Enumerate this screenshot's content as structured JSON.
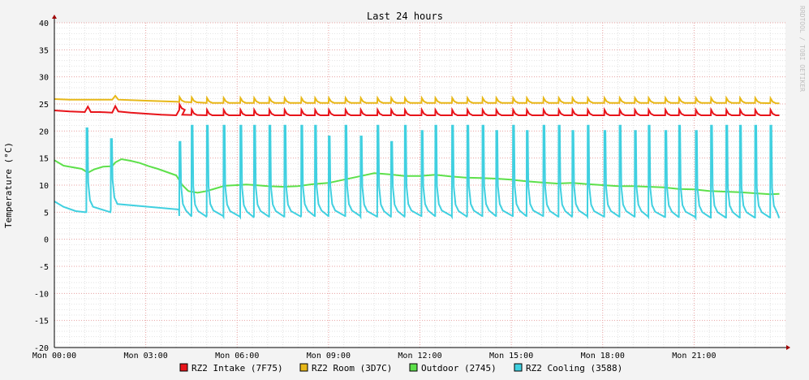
{
  "chart_data": {
    "type": "line",
    "title": "Last 24 hours",
    "ylabel": "Temperature (°C)",
    "watermark": "RRDTOOL / TOBI OETIKER",
    "ylim": [
      -20,
      40
    ],
    "y_ticks": [
      -20,
      -15,
      -10,
      -5,
      0,
      5,
      10,
      15,
      20,
      25,
      30,
      35,
      40
    ],
    "xlim": [
      0,
      24
    ],
    "x_ticks": [
      {
        "hour": 0,
        "label": "Mon 00:00"
      },
      {
        "hour": 3,
        "label": "Mon 03:00"
      },
      {
        "hour": 6,
        "label": "Mon 06:00"
      },
      {
        "hour": 9,
        "label": "Mon 09:00"
      },
      {
        "hour": 12,
        "label": "Mon 12:00"
      },
      {
        "hour": 15,
        "label": "Mon 15:00"
      },
      {
        "hour": 18,
        "label": "Mon 18:00"
      },
      {
        "hour": 21,
        "label": "Mon 21:00"
      }
    ],
    "grid": true,
    "legend_placement": "bottom",
    "series": [
      {
        "name": "RZ2 Intake (7F75)",
        "color": "#e8141a",
        "points": [
          [
            0,
            23.8
          ],
          [
            0.5,
            23.6
          ],
          [
            1,
            23.5
          ],
          [
            1.1,
            24.5
          ],
          [
            1.2,
            23.5
          ],
          [
            1.5,
            23.5
          ],
          [
            1.9,
            23.4
          ],
          [
            2.0,
            24.6
          ],
          [
            2.1,
            23.6
          ],
          [
            2.5,
            23.4
          ],
          [
            3,
            23.2
          ],
          [
            3.5,
            23.0
          ],
          [
            4,
            22.9
          ],
          [
            4.1,
            23.9
          ],
          [
            4.2,
            23.0
          ],
          [
            5,
            22.9
          ],
          [
            5.5,
            22.9
          ],
          [
            6,
            22.9
          ],
          [
            7,
            22.9
          ],
          [
            8,
            22.9
          ],
          [
            9,
            22.9
          ],
          [
            10,
            22.9
          ],
          [
            11,
            22.9
          ],
          [
            12,
            22.9
          ],
          [
            13,
            22.9
          ],
          [
            14,
            22.9
          ],
          [
            15,
            22.9
          ],
          [
            16,
            22.9
          ],
          [
            17,
            22.9
          ],
          [
            18,
            22.9
          ],
          [
            19,
            22.9
          ],
          [
            20,
            22.9
          ],
          [
            21,
            22.9
          ],
          [
            22,
            22.9
          ],
          [
            23,
            22.9
          ],
          [
            23.3,
            22.9
          ],
          [
            23.5,
            22.9
          ],
          [
            23.8,
            22.9
          ]
        ]
      },
      {
        "name": "RZ2 Room (3D7C)",
        "color": "#e8b818",
        "points": [
          [
            0,
            25.9
          ],
          [
            0.5,
            25.8
          ],
          [
            1,
            25.8
          ],
          [
            1.9,
            25.8
          ],
          [
            2.0,
            26.5
          ],
          [
            2.1,
            25.8
          ],
          [
            3,
            25.6
          ],
          [
            4,
            25.4
          ],
          [
            5,
            25.2
          ],
          [
            6,
            25.2
          ],
          [
            7,
            25.2
          ],
          [
            8,
            25.2
          ],
          [
            9,
            25.2
          ],
          [
            10,
            25.2
          ],
          [
            11,
            25.2
          ],
          [
            12,
            25.2
          ],
          [
            13,
            25.2
          ],
          [
            14,
            25.2
          ],
          [
            15,
            25.2
          ],
          [
            16,
            25.2
          ],
          [
            17,
            25.2
          ],
          [
            18,
            25.2
          ],
          [
            19,
            25.2
          ],
          [
            20,
            25.2
          ],
          [
            21,
            25.2
          ],
          [
            22,
            25.2
          ],
          [
            23,
            25.2
          ],
          [
            23.8,
            25.1
          ]
        ]
      },
      {
        "name": "Outdoor (2745)",
        "color": "#5de04a",
        "points": [
          [
            0,
            14.6
          ],
          [
            0.3,
            13.6
          ],
          [
            0.6,
            13.3
          ],
          [
            0.9,
            13.0
          ],
          [
            1.1,
            12.3
          ],
          [
            1.3,
            12.9
          ],
          [
            1.6,
            13.4
          ],
          [
            1.9,
            13.5
          ],
          [
            2.0,
            14.2
          ],
          [
            2.2,
            14.8
          ],
          [
            2.5,
            14.5
          ],
          [
            2.8,
            14.1
          ],
          [
            3.1,
            13.5
          ],
          [
            3.4,
            13.0
          ],
          [
            3.7,
            12.4
          ],
          [
            4.0,
            11.8
          ],
          [
            4.2,
            10.0
          ],
          [
            4.4,
            8.9
          ],
          [
            4.7,
            8.6
          ],
          [
            5.0,
            8.9
          ],
          [
            5.3,
            9.4
          ],
          [
            5.6,
            9.9
          ],
          [
            6.0,
            10.0
          ],
          [
            6.3,
            10.1
          ],
          [
            6.6,
            10.0
          ],
          [
            7,
            9.8
          ],
          [
            7.5,
            9.7
          ],
          [
            8,
            9.8
          ],
          [
            8.5,
            10.2
          ],
          [
            9,
            10.4
          ],
          [
            9.5,
            11.0
          ],
          [
            10,
            11.6
          ],
          [
            10.5,
            12.2
          ],
          [
            11,
            12.0
          ],
          [
            11.5,
            11.7
          ],
          [
            12,
            11.7
          ],
          [
            12.5,
            11.9
          ],
          [
            13,
            11.6
          ],
          [
            13.5,
            11.4
          ],
          [
            14,
            11.3
          ],
          [
            14.5,
            11.2
          ],
          [
            15,
            11.0
          ],
          [
            15.5,
            10.7
          ],
          [
            16,
            10.5
          ],
          [
            16.5,
            10.3
          ],
          [
            17,
            10.4
          ],
          [
            17.5,
            10.2
          ],
          [
            18,
            10.0
          ],
          [
            18.5,
            9.8
          ],
          [
            19,
            9.8
          ],
          [
            19.5,
            9.7
          ],
          [
            20,
            9.6
          ],
          [
            20.5,
            9.3
          ],
          [
            21,
            9.2
          ],
          [
            21.5,
            8.9
          ],
          [
            22,
            8.8
          ],
          [
            22.5,
            8.7
          ],
          [
            23,
            8.5
          ],
          [
            23.5,
            8.3
          ],
          [
            23.8,
            8.4
          ]
        ]
      },
      {
        "name": "RZ2 Cooling (3588)",
        "color": "#40d0e0",
        "points": []
      }
    ],
    "cooling": {
      "spike_hours": [
        1.05,
        1.85,
        4.1,
        4.5,
        5.0,
        5.55,
        6.1,
        6.55,
        7.05,
        7.55,
        8.1,
        8.55,
        9.0,
        9.55,
        10.05,
        10.6,
        11.05,
        11.5,
        12.05,
        12.5,
        13.05,
        13.55,
        14.05,
        14.5,
        15.05,
        15.5,
        16.05,
        16.55,
        17.0,
        17.5,
        18.05,
        18.55,
        19.05,
        19.5,
        20.05,
        20.5,
        21.05,
        21.55,
        22.05,
        22.5,
        23.0,
        23.5
      ],
      "spike_peaks": [
        20.5,
        18.5,
        18,
        21,
        21,
        21,
        21,
        21,
        21,
        21,
        21,
        21,
        19,
        21,
        19,
        21,
        18,
        21,
        20,
        21,
        21,
        21,
        21,
        20,
        21,
        20,
        21,
        21,
        20,
        21,
        20,
        21,
        20,
        21,
        20,
        21,
        20,
        21,
        21,
        21,
        21,
        21
      ],
      "baselines": [
        5.0,
        5.5,
        4.3,
        4.2,
        4.3,
        4.2,
        4.1,
        4.2,
        4.2,
        4.2,
        4.3,
        4.3,
        4.3,
        4.3,
        4.2,
        4.2,
        4.2,
        4.3,
        4.3,
        4.3,
        4.2,
        4.3,
        4.3,
        4.3,
        4.3,
        4.3,
        4.2,
        4.2,
        4.3,
        4.2,
        4.2,
        4.2,
        4.2,
        4.1,
        4.1,
        4.1,
        4.0,
        4.0,
        4.0,
        4.0,
        4.0,
        4.0
      ],
      "start_value": 7.0,
      "end_hour": 23.8
    }
  }
}
